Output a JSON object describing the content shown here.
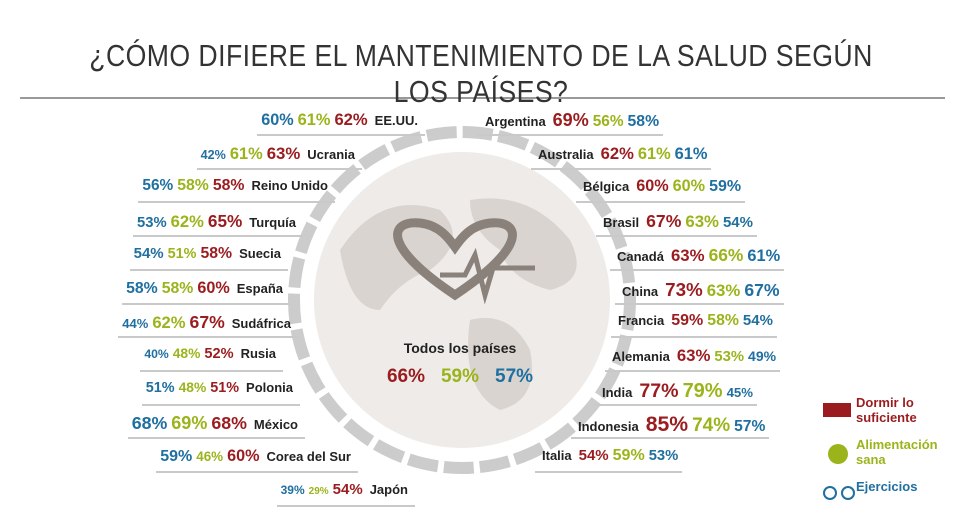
{
  "header": {
    "title": "¿CÓMO DIFIERE EL MANTENIMIENTO DE LA SALUD SEGÚN LOS PAÍSES?"
  },
  "left": [
    {
      "name": "EE.UU.",
      "exercise": "60%",
      "food": "61%",
      "sleep": "62%"
    },
    {
      "name": "Ucrania",
      "exercise": "42%",
      "food": "61%",
      "sleep": "63%"
    },
    {
      "name": "Reino Unido",
      "exercise": "56%",
      "food": "58%",
      "sleep": "58%"
    },
    {
      "name": "Turquía",
      "exercise": "53%",
      "food": "62%",
      "sleep": "65%"
    },
    {
      "name": "Suecia",
      "exercise": "54%",
      "food": "51%",
      "sleep": "58%"
    },
    {
      "name": "España",
      "exercise": "58%",
      "food": "58%",
      "sleep": "60%"
    },
    {
      "name": "Sudáfrica",
      "exercise": "44%",
      "food": "62%",
      "sleep": "67%"
    },
    {
      "name": "Rusia",
      "exercise": "40%",
      "food": "48%",
      "sleep": "52%"
    },
    {
      "name": "Polonia",
      "exercise": "51%",
      "food": "48%",
      "sleep": "51%"
    },
    {
      "name": "México",
      "exercise": "68%",
      "food": "69%",
      "sleep": "68%"
    },
    {
      "name": "Corea del Sur",
      "exercise": "59%",
      "food": "46%",
      "sleep": "60%"
    },
    {
      "name": "Japón",
      "exercise": "39%",
      "food": "29%",
      "sleep": "54%"
    }
  ],
  "right": [
    {
      "name": "Argentina",
      "sleep": "69%",
      "food": "56%",
      "exercise": "58%"
    },
    {
      "name": "Australia",
      "sleep": "62%",
      "food": "61%",
      "exercise": "61%"
    },
    {
      "name": "Bélgica",
      "sleep": "60%",
      "food": "60%",
      "exercise": "59%"
    },
    {
      "name": "Brasil",
      "sleep": "67%",
      "food": "63%",
      "exercise": "54%"
    },
    {
      "name": "Canadá",
      "sleep": "63%",
      "food": "66%",
      "exercise": "61%"
    },
    {
      "name": "China",
      "sleep": "73%",
      "food": "63%",
      "exercise": "67%"
    },
    {
      "name": "Francia",
      "sleep": "59%",
      "food": "58%",
      "exercise": "54%"
    },
    {
      "name": "Alemania",
      "sleep": "63%",
      "food": "53%",
      "exercise": "49%"
    },
    {
      "name": "India",
      "sleep": "77%",
      "food": "79%",
      "exercise": "45%"
    },
    {
      "name": "Indonesia",
      "sleep": "85%",
      "food": "74%",
      "exercise": "57%"
    },
    {
      "name": "Italia",
      "sleep": "54%",
      "food": "59%",
      "exercise": "53%"
    }
  ],
  "center": {
    "label": "Todos los países",
    "sleep": "66%",
    "food": "59%",
    "exercise": "57%"
  },
  "legend": {
    "sleep": "Dormir lo suficiente",
    "food": "Alimentación sana",
    "exercise": "Ejercicios"
  }
}
